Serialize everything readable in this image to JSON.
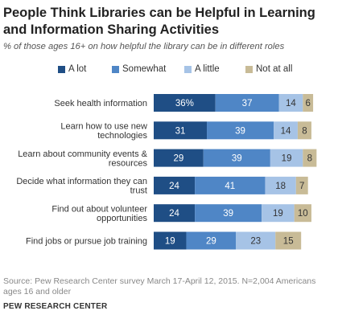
{
  "title": "People Think Libraries can be Helpful in Learning and Information Sharing Activities",
  "subtitle": "% of those ages 16+ on how helpful the library can be in different roles",
  "source": "Source: Pew Research Center survey March 17-April 12, 2015. N=2,004 Americans ages 16 and older",
  "organization": "PEW RESEARCH CENTER",
  "colors": {
    "a_lot": "#1f4e85",
    "somewhat": "#4f86c6",
    "a_little": "#a6c3e6",
    "not_at_all": "#c8bb97"
  },
  "chart_data": {
    "type": "bar",
    "orientation": "horizontal",
    "stacked": true,
    "legend_position": "top",
    "grid": false,
    "xlim": [
      0,
      100
    ],
    "categories": [
      "Seek health information",
      "Learn how to use new technologies",
      "Learn about community events & resources",
      "Decide what information they can trust",
      "Find out about volunteer opportunities",
      "Find jobs or pursue job training"
    ],
    "series": [
      {
        "name": "A lot",
        "values": [
          36,
          31,
          29,
          24,
          24,
          19
        ],
        "labels": [
          "36%",
          "31",
          "29",
          "24",
          "24",
          "19"
        ]
      },
      {
        "name": "Somewhat",
        "values": [
          37,
          39,
          39,
          41,
          39,
          29
        ],
        "labels": [
          "37",
          "39",
          "39",
          "41",
          "39",
          "29"
        ]
      },
      {
        "name": "A little",
        "values": [
          14,
          14,
          19,
          18,
          19,
          23
        ],
        "labels": [
          "14",
          "14",
          "19",
          "18",
          "19",
          "23"
        ]
      },
      {
        "name": "Not at all",
        "values": [
          6,
          8,
          8,
          7,
          10,
          15
        ],
        "labels": [
          "6",
          "8",
          "8",
          "7",
          "10",
          "15"
        ]
      }
    ]
  }
}
